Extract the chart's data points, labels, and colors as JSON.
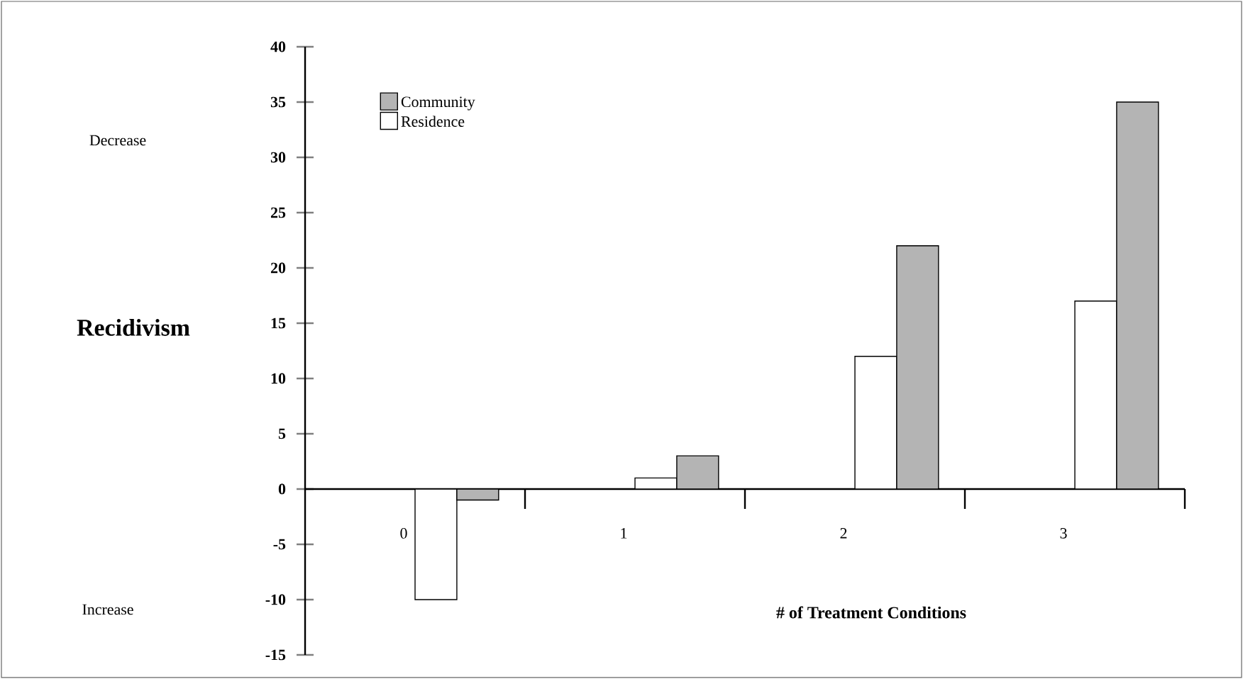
{
  "chart_data": {
    "type": "bar",
    "xlabel": "# of Treatment Conditions",
    "ylabel": "Recidivism",
    "annotations": [
      "Decrease",
      "Increase"
    ],
    "categories": [
      "0",
      "1",
      "2",
      "3"
    ],
    "series": [
      {
        "name": "Residence",
        "color": "#ffffff",
        "values": [
          -10,
          1,
          12,
          17
        ]
      },
      {
        "name": "Community",
        "color": "#b4b4b4",
        "values": [
          -1,
          3,
          22,
          35
        ]
      }
    ],
    "ylim": [
      -15,
      40
    ],
    "yticks": [
      -15,
      -10,
      -5,
      0,
      5,
      10,
      15,
      20,
      25,
      30,
      35,
      40
    ],
    "grid": false,
    "legend": "top left"
  }
}
